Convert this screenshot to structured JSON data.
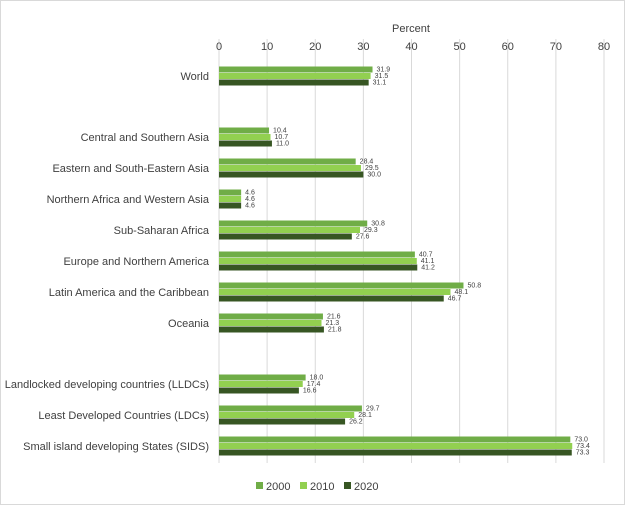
{
  "chart_data": {
    "type": "bar",
    "orientation": "horizontal",
    "title": "",
    "xlabel": "Percent",
    "xaxis_position": "top",
    "xlim": [
      0,
      80
    ],
    "xticks": [
      0,
      10,
      20,
      30,
      40,
      50,
      60,
      70,
      80
    ],
    "xtick_labels": [
      "0",
      "10",
      "20",
      "30",
      "40",
      "50",
      "60",
      "70",
      "80"
    ],
    "grid": "vertical",
    "legend_position": "bottom",
    "categories": [
      "World",
      "Central and Southern Asia",
      "Eastern and South-Eastern Asia",
      "Northern Africa and Western Asia",
      "Sub-Saharan Africa",
      "Europe and Northern America",
      "Latin America and the Caribbean",
      "Oceania",
      "Landlocked developing countries (LLDCs)",
      "Least Developed Countries (LDCs)",
      "Small island developing States (SIDS)"
    ],
    "series": [
      {
        "name": "2000",
        "color": "#70ad47",
        "values": [
          31.9,
          10.4,
          28.4,
          4.6,
          30.8,
          40.7,
          50.8,
          21.6,
          18.0,
          29.7,
          73.0
        ]
      },
      {
        "name": "2010",
        "color": "#92d050",
        "values": [
          31.5,
          10.7,
          29.5,
          4.6,
          29.3,
          41.1,
          48.1,
          21.3,
          17.4,
          28.1,
          73.4
        ]
      },
      {
        "name": "2020",
        "color": "#375623",
        "values": [
          31.1,
          11.0,
          30.0,
          4.6,
          27.6,
          41.2,
          46.7,
          21.8,
          16.6,
          26.2,
          73.3
        ]
      }
    ],
    "value_labels": [
      [
        "31.9",
        "10.4",
        "28.4",
        "4.6",
        "30.8",
        "40.7",
        "50.8",
        "21.6",
        "18.0",
        "29.7",
        "73.0"
      ],
      [
        "31.5",
        "10.7",
        "29.5",
        "4.6",
        "29.3",
        "41.1",
        "48.1",
        "21.3",
        "17.4",
        "28.1",
        "73.4"
      ],
      [
        "31.1",
        "11.0",
        "30.0",
        "4.6",
        "27.6",
        "41.2",
        "46.7",
        "21.8",
        "16.6",
        "26.2",
        "73.3"
      ]
    ]
  }
}
